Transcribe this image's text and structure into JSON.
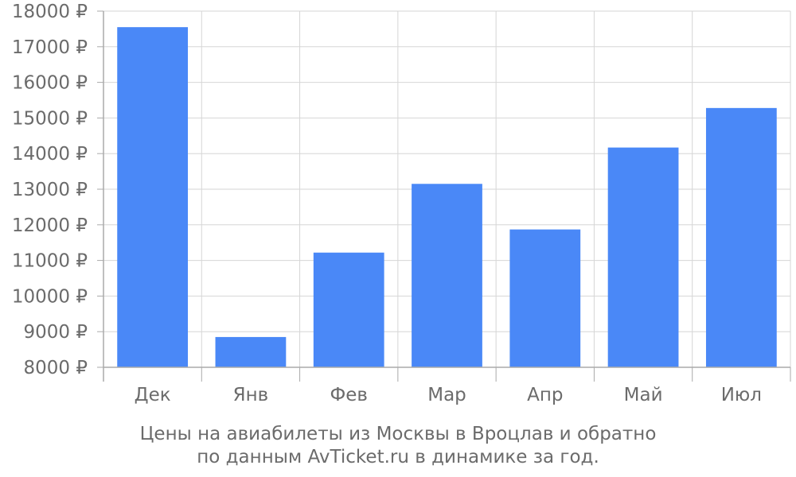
{
  "chart_data": {
    "type": "bar",
    "categories": [
      "Дек",
      "Янв",
      "Фев",
      "Мар",
      "Апр",
      "Май",
      "Июл"
    ],
    "values": [
      17550,
      8850,
      11220,
      13150,
      11870,
      14170,
      15280
    ],
    "ylim": [
      8000,
      18000
    ],
    "y_ticks": [
      "8000 ₽",
      "9000 ₽",
      "10000 ₽",
      "11000 ₽",
      "12000 ₽",
      "13000 ₽",
      "14000 ₽",
      "15000 ₽",
      "16000 ₽",
      "17000 ₽",
      "18000 ₽"
    ],
    "y_tick_values": [
      8000,
      9000,
      10000,
      11000,
      12000,
      13000,
      14000,
      15000,
      16000,
      17000,
      18000
    ],
    "grid": true,
    "bar_color": "#4a88f7",
    "grid_color": "#d6d6d6",
    "axis_color": "#aaaaaa",
    "text_color": "#6b6b6b"
  },
  "caption": {
    "line1": "Цены на авиабилеты из Москвы в Вроцлав и обратно",
    "line2": "по данным AvTicket.ru в динамике за год."
  }
}
